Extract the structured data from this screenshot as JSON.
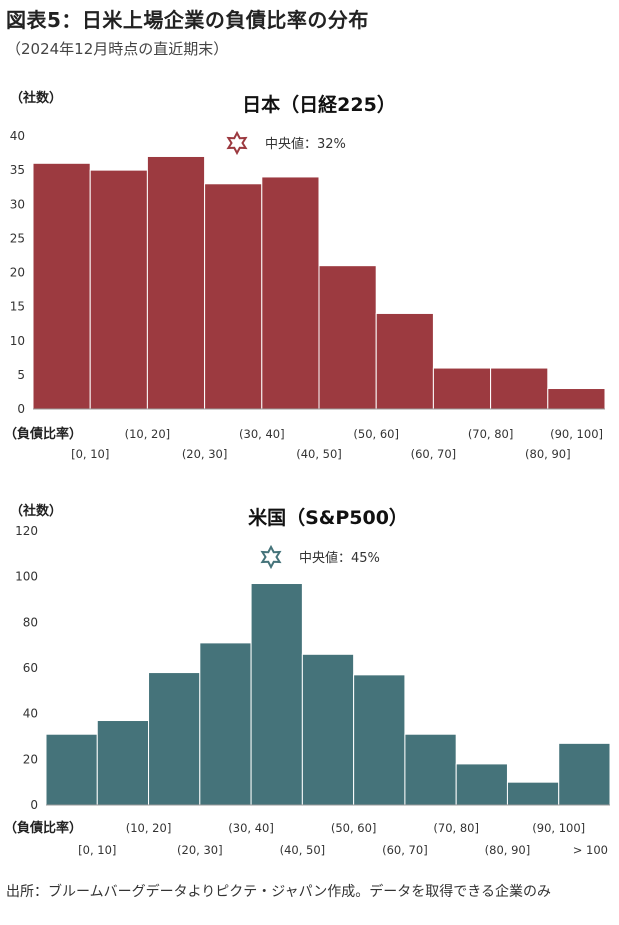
{
  "title": "図表5：日米上場企業の負債比率の分布",
  "subtitle": "（2024年12月時点の直近期末）",
  "source": "出所：ブルームバーグデータよりピクテ・ジャパン作成。データを取得できる企業のみ",
  "chart_data": [
    {
      "type": "bar",
      "title": "日本（日経225）",
      "unit_label": "（社数）",
      "xlabel": "（負債比率）",
      "median_label": "中央値：32%",
      "color": "#9c3a40",
      "categories": [
        "[0, 10]",
        "(10, 20]",
        "(20, 30]",
        "(30, 40]",
        "(40, 50]",
        "(50, 60]",
        "(60, 70]",
        "(70, 80]",
        "(80, 90]",
        "(90, 100]"
      ],
      "values": [
        36,
        35,
        37,
        33,
        34,
        21,
        14,
        6,
        6,
        3
      ],
      "ylim": [
        0,
        40
      ],
      "yticks": [
        0,
        5,
        10,
        15,
        20,
        25,
        30,
        35,
        40
      ]
    },
    {
      "type": "bar",
      "title": "米国（S&P500）",
      "unit_label": "（社数）",
      "xlabel": "（負債比率）",
      "median_label": "中央値：45%",
      "color": "#45737a",
      "categories": [
        "[0, 10]",
        "(10, 20]",
        "(20, 30]",
        "(30, 40]",
        "(40, 50]",
        "(50, 60]",
        "(60, 70]",
        "(70, 80]",
        "(80, 90]",
        "(90, 100]",
        "> 100"
      ],
      "values": [
        31,
        37,
        58,
        71,
        97,
        66,
        57,
        31,
        18,
        10,
        27
      ],
      "ylim": [
        0,
        120
      ],
      "yticks": [
        0,
        20,
        40,
        60,
        80,
        100,
        120
      ]
    }
  ]
}
